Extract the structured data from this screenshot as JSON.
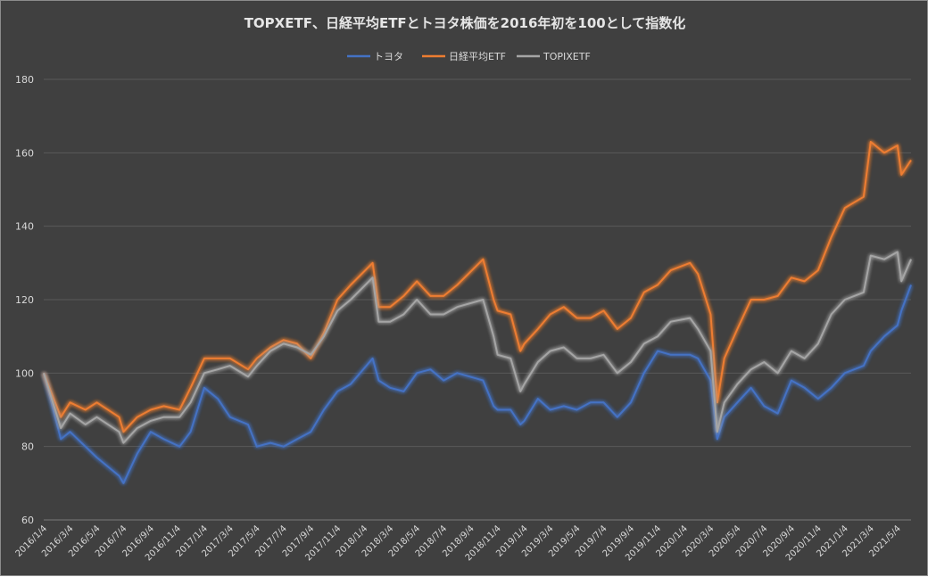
{
  "chart_data": {
    "type": "line",
    "title": "TOPXETF、日経平均ETFとトヨタ株価を2016年初を100として指数化",
    "xlabel": "",
    "ylabel": "",
    "ylim": [
      60,
      180
    ],
    "yticks": [
      "60",
      "80",
      "100",
      "120",
      "140",
      "160",
      "180"
    ],
    "grid": "horizontal",
    "legend": "top-center",
    "x_ticks": [
      "2016/1/4",
      "2016/3/4",
      "2016/5/4",
      "2016/7/4",
      "2016/9/4",
      "2016/11/4",
      "2017/1/4",
      "2017/3/4",
      "2017/5/4",
      "2017/7/4",
      "2017/9/4",
      "2017/11/4",
      "2018/1/4",
      "2018/3/4",
      "2018/5/4",
      "2018/7/4",
      "2018/9/4",
      "2018/11/4",
      "2019/1/4",
      "2019/3/4",
      "2019/5/4",
      "2019/7/4",
      "2019/9/4",
      "2019/11/4",
      "2020/1/4",
      "2020/3/4",
      "2020/5/4",
      "2020/7/4",
      "2020/9/4",
      "2020/11/4",
      "2021/1/4",
      "2021/3/4",
      "2021/5/4"
    ],
    "x": [
      "2016/1/4",
      "2016/2/12",
      "2016/3/4",
      "2016/4/8",
      "2016/5/4",
      "2016/6/24",
      "2016/7/4",
      "2016/8/4",
      "2016/9/4",
      "2016/10/4",
      "2016/11/9",
      "2016/12/4",
      "2017/1/4",
      "2017/2/4",
      "2017/3/4",
      "2017/4/14",
      "2017/5/4",
      "2017/6/4",
      "2017/7/4",
      "2017/8/4",
      "2017/9/4",
      "2017/10/4",
      "2017/11/4",
      "2017/12/4",
      "2018/1/23",
      "2018/2/6",
      "2018/3/4",
      "2018/4/4",
      "2018/5/4",
      "2018/6/4",
      "2018/7/4",
      "2018/8/4",
      "2018/10/2",
      "2018/10/26",
      "2018/11/4",
      "2018/12/4",
      "2018/12/26",
      "2019/1/4",
      "2019/2/4",
      "2019/3/4",
      "2019/4/4",
      "2019/5/4",
      "2019/6/4",
      "2019/7/4",
      "2019/8/4",
      "2019/9/4",
      "2019/10/4",
      "2019/11/4",
      "2019/12/4",
      "2020/1/17",
      "2020/2/4",
      "2020/3/4",
      "2020/3/19",
      "2020/4/4",
      "2020/5/4",
      "2020/6/4",
      "2020/7/4",
      "2020/8/4",
      "2020/9/4",
      "2020/10/4",
      "2020/11/4",
      "2020/12/4",
      "2021/1/4",
      "2021/2/16",
      "2021/3/4",
      "2021/4/4",
      "2021/5/4",
      "2021/5/13",
      "2021/6/4"
    ],
    "series": [
      {
        "name": "トヨタ",
        "color": "#4472c4",
        "values": [
          100,
          82,
          84,
          80,
          77,
          72,
          70,
          78,
          84,
          82,
          80,
          84,
          96,
          93,
          88,
          86,
          80,
          81,
          80,
          82,
          84,
          90,
          95,
          97,
          104,
          98,
          96,
          95,
          100,
          101,
          98,
          100,
          98,
          91,
          90,
          90,
          86,
          87,
          93,
          90,
          91,
          90,
          92,
          92,
          88,
          92,
          100,
          106,
          105,
          105,
          104,
          98,
          82,
          88,
          92,
          96,
          91,
          89,
          98,
          96,
          93,
          96,
          100,
          102,
          106,
          110,
          113,
          117,
          124
        ]
      },
      {
        "name": "日経平均ETF",
        "color": "#ed7d31",
        "values": [
          100,
          88,
          92,
          90,
          92,
          88,
          84,
          88,
          90,
          91,
          90,
          96,
          104,
          104,
          104,
          101,
          104,
          107,
          109,
          108,
          104,
          111,
          120,
          124,
          130,
          118,
          118,
          121,
          125,
          121,
          121,
          124,
          131,
          120,
          117,
          116,
          106,
          108,
          112,
          116,
          118,
          115,
          115,
          117,
          112,
          115,
          122,
          124,
          128,
          130,
          127,
          116,
          92,
          104,
          112,
          120,
          120,
          121,
          126,
          125,
          128,
          137,
          145,
          148,
          163,
          160,
          162,
          154,
          158
        ]
      },
      {
        "name": "TOPIXETF",
        "color": "#a5a5a5",
        "values": [
          100,
          85,
          89,
          86,
          88,
          84,
          81,
          85,
          87,
          88,
          88,
          92,
          100,
          101,
          102,
          99,
          102,
          106,
          108,
          107,
          105,
          110,
          117,
          120,
          126,
          114,
          114,
          116,
          120,
          116,
          116,
          118,
          120,
          110,
          105,
          104,
          95,
          97,
          103,
          106,
          107,
          104,
          104,
          105,
          100,
          103,
          108,
          110,
          114,
          115,
          112,
          106,
          84,
          92,
          97,
          101,
          103,
          100,
          106,
          104,
          108,
          116,
          120,
          122,
          132,
          131,
          133,
          125,
          131
        ]
      }
    ]
  }
}
